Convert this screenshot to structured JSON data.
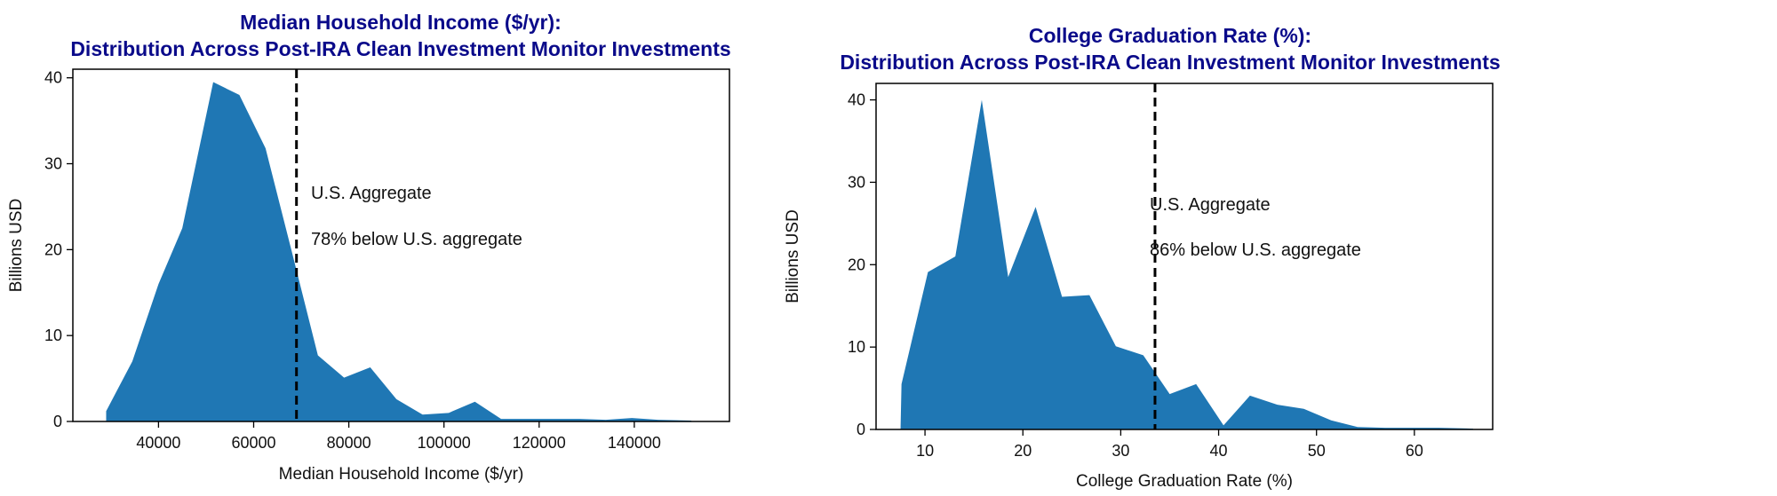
{
  "chart_data": [
    {
      "type": "area",
      "title_line1": "Median Household Income ($/yr):",
      "title_line2": "Distribution Across Post-IRA Clean Investment Monitor Investments",
      "xlabel": "Median Household Income ($/yr)",
      "ylabel": "Billions USD",
      "xlim": [
        22000,
        160000
      ],
      "ylim": [
        0,
        41
      ],
      "xticks": [
        40000,
        60000,
        80000,
        100000,
        120000,
        140000
      ],
      "yticks": [
        0,
        10,
        20,
        30,
        40
      ],
      "color": "#1f77b4",
      "x": [
        29000,
        34500,
        40000,
        45000,
        51500,
        57000,
        62500,
        68000,
        73500,
        79000,
        84500,
        90000,
        95500,
        101000,
        106500,
        112000,
        117500,
        123000,
        128500,
        134000,
        139500,
        145000,
        152000
      ],
      "values": [
        1.2,
        7.0,
        16.0,
        22.5,
        39.5,
        38.0,
        31.8,
        19.8,
        7.7,
        5.1,
        6.3,
        2.6,
        0.8,
        1.0,
        2.3,
        0.3,
        0.3,
        0.3,
        0.3,
        0.2,
        0.4,
        0.2,
        0.1
      ],
      "reference_x": 69000,
      "annotations": [
        "U.S. Aggregate",
        "78% below U.S. aggregate"
      ]
    },
    {
      "type": "area",
      "title_line1": "College Graduation Rate (%):",
      "title_line2": "Distribution Across Post-IRA Clean Investment Monitor Investments",
      "xlabel": "College Graduation Rate (%)",
      "ylabel": "Billions USD",
      "xlim": [
        5,
        68
      ],
      "ylim": [
        0,
        42
      ],
      "xticks": [
        10,
        20,
        30,
        40,
        50,
        60
      ],
      "yticks": [
        0,
        10,
        20,
        30,
        40
      ],
      "color": "#1f77b4",
      "x": [
        7.5,
        7.6,
        10.3,
        13.1,
        15.8,
        18.5,
        21.3,
        24.0,
        26.8,
        29.5,
        32.3,
        35.0,
        37.7,
        40.5,
        43.2,
        46.0,
        48.7,
        51.5,
        54.2,
        57.0,
        59.7,
        62.5,
        66.0
      ],
      "values": [
        0,
        5.5,
        19.1,
        21.0,
        40.0,
        18.5,
        27.0,
        16.1,
        16.3,
        10.1,
        9.0,
        4.3,
        5.5,
        0.5,
        4.1,
        3.0,
        2.5,
        1.1,
        0.3,
        0.2,
        0.2,
        0.2,
        0.1
      ],
      "reference_x": 33.5,
      "annotations": [
        "U.S. Aggregate",
        "86% below U.S. aggregate"
      ]
    }
  ]
}
